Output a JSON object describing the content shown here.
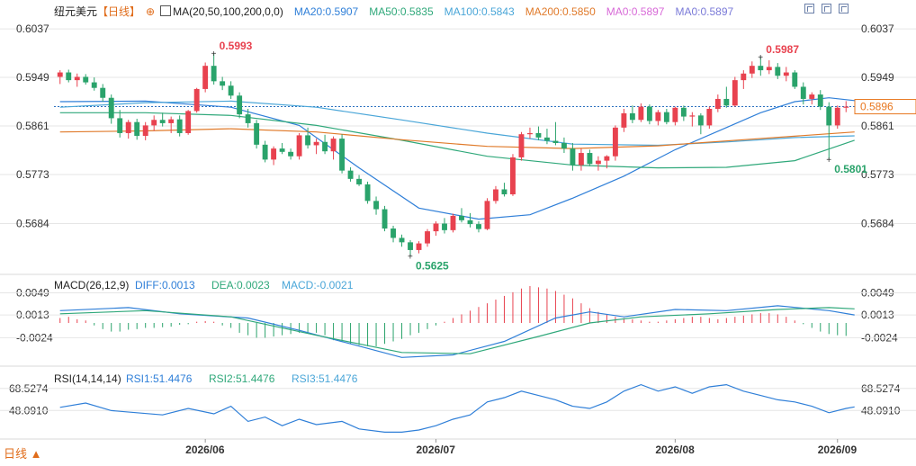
{
  "header": {
    "symbol": "纽元美元",
    "period": "【日线】",
    "ma_label": "MA(20,50,100,200,0,0)",
    "ma_values": [
      {
        "text": "MA20:0.5907",
        "color": "#2f7fd8"
      },
      {
        "text": "MA50:0.5835",
        "color": "#2fa87a"
      },
      {
        "text": "MA100:0.5843",
        "color": "#4aa6d8"
      },
      {
        "text": "MA200:0.5850",
        "color": "#e07a2a"
      },
      {
        "text": "MA0:0.5897",
        "color": "#d86ad8"
      },
      {
        "text": "MA0:0.5897",
        "color": "#7a7ad8"
      }
    ]
  },
  "colors": {
    "up": "#e8424f",
    "down": "#2aa36b",
    "grid": "#e6e6e6",
    "axis_text": "#333333",
    "price_tag": "#e8771f"
  },
  "price_axis": {
    "ticks": [
      "0.6037",
      "0.5949",
      "0.5861",
      "0.5773",
      "0.5684"
    ],
    "current": "0.5896"
  },
  "annotations": {
    "high1": "0.5993",
    "high2": "0.5987",
    "low1": "0.5625",
    "low2": "0.5801"
  },
  "macd_panel": {
    "label": "MACD(26,12,9)",
    "values": [
      {
        "text": "DIFF:0.0013",
        "color": "#2f7fd8"
      },
      {
        "text": "DEA:0.0023",
        "color": "#2fa87a"
      },
      {
        "text": "MACD:-0.0021",
        "color": "#4aa6d8"
      }
    ],
    "ticks": [
      "0.0049",
      "0.0013",
      "-0.0024"
    ]
  },
  "rsi_panel": {
    "label": "RSI(14,14,14)",
    "values": [
      {
        "text": "RSI1:51.4476",
        "color": "#2f7fd8"
      },
      {
        "text": "RSI2:51.4476",
        "color": "#2fa87a"
      },
      {
        "text": "RSI3:51.4476",
        "color": "#4aa6d8"
      }
    ],
    "ticks": [
      "68.5274",
      "48.0910"
    ]
  },
  "x_axis": {
    "labels": [
      "2026/06",
      "2026/07",
      "2026/08",
      "2026/09"
    ]
  },
  "bottom_tab": "日线 ▲",
  "chart_data": {
    "type": "candlestick",
    "candles": [
      [
        0.595,
        0.5962,
        0.5937,
        0.5958
      ],
      [
        0.5958,
        0.5963,
        0.594,
        0.5944
      ],
      [
        0.5944,
        0.5956,
        0.5932,
        0.595
      ],
      [
        0.595,
        0.5955,
        0.5936,
        0.594
      ],
      [
        0.594,
        0.5949,
        0.5925,
        0.593
      ],
      [
        0.593,
        0.5937,
        0.5905,
        0.5912
      ],
      [
        0.5912,
        0.5918,
        0.5865,
        0.5875
      ],
      [
        0.5875,
        0.589,
        0.584,
        0.5848
      ],
      [
        0.5848,
        0.5872,
        0.5838,
        0.5868
      ],
      [
        0.5868,
        0.5874,
        0.5836,
        0.5843
      ],
      [
        0.5843,
        0.5868,
        0.5835,
        0.5862
      ],
      [
        0.5862,
        0.588,
        0.5852,
        0.5872
      ],
      [
        0.5872,
        0.5885,
        0.586,
        0.5866
      ],
      [
        0.5866,
        0.5878,
        0.5848,
        0.5873
      ],
      [
        0.5873,
        0.588,
        0.5842,
        0.5848
      ],
      [
        0.5848,
        0.589,
        0.5845,
        0.5888
      ],
      [
        0.5888,
        0.593,
        0.5885,
        0.5928
      ],
      [
        0.5928,
        0.5976,
        0.5922,
        0.597
      ],
      [
        0.597,
        0.5993,
        0.5936,
        0.5942
      ],
      [
        0.5942,
        0.595,
        0.5926,
        0.5934
      ],
      [
        0.5934,
        0.5942,
        0.591,
        0.5916
      ],
      [
        0.5916,
        0.5922,
        0.5875,
        0.5882
      ],
      [
        0.5882,
        0.5892,
        0.5858,
        0.5866
      ],
      [
        0.5866,
        0.5872,
        0.582,
        0.5827
      ],
      [
        0.5827,
        0.5834,
        0.5795,
        0.58
      ],
      [
        0.58,
        0.5824,
        0.579,
        0.582
      ],
      [
        0.582,
        0.583,
        0.581,
        0.5814
      ],
      [
        0.5814,
        0.582,
        0.58,
        0.5806
      ],
      [
        0.5806,
        0.5848,
        0.58,
        0.5844
      ],
      [
        0.5844,
        0.5858,
        0.582,
        0.5826
      ],
      [
        0.5826,
        0.5838,
        0.581,
        0.5832
      ],
      [
        0.5832,
        0.5845,
        0.581,
        0.5815
      ],
      [
        0.5815,
        0.5842,
        0.58,
        0.5838
      ],
      [
        0.5838,
        0.5846,
        0.5775,
        0.578
      ],
      [
        0.578,
        0.5786,
        0.576,
        0.5765
      ],
      [
        0.5765,
        0.5772,
        0.5752,
        0.5755
      ],
      [
        0.5755,
        0.576,
        0.572,
        0.5725
      ],
      [
        0.5725,
        0.5733,
        0.57,
        0.571
      ],
      [
        0.571,
        0.5716,
        0.567,
        0.5675
      ],
      [
        0.5675,
        0.568,
        0.565,
        0.5658
      ],
      [
        0.5658,
        0.5664,
        0.5642,
        0.565
      ],
      [
        0.565,
        0.5654,
        0.5625,
        0.5636
      ],
      [
        0.5636,
        0.5652,
        0.563,
        0.5648
      ],
      [
        0.5648,
        0.5674,
        0.5642,
        0.567
      ],
      [
        0.567,
        0.5688,
        0.5662,
        0.5684
      ],
      [
        0.5684,
        0.5694,
        0.5666,
        0.5672
      ],
      [
        0.5672,
        0.5702,
        0.5668,
        0.5698
      ],
      [
        0.5698,
        0.5712,
        0.5686,
        0.569
      ],
      [
        0.569,
        0.5703,
        0.5677,
        0.5683
      ],
      [
        0.5683,
        0.5688,
        0.5668,
        0.5674
      ],
      [
        0.5674,
        0.573,
        0.5672,
        0.5725
      ],
      [
        0.5725,
        0.5752,
        0.572,
        0.5746
      ],
      [
        0.5746,
        0.5758,
        0.5733,
        0.5737
      ],
      [
        0.5737,
        0.581,
        0.5734,
        0.5804
      ],
      [
        0.5804,
        0.585,
        0.5798,
        0.5846
      ],
      [
        0.5846,
        0.5858,
        0.5838,
        0.5848
      ],
      [
        0.5848,
        0.586,
        0.5835,
        0.584
      ],
      [
        0.584,
        0.5856,
        0.5828,
        0.5834
      ],
      [
        0.5834,
        0.5868,
        0.5826,
        0.583
      ],
      [
        0.583,
        0.584,
        0.5812,
        0.582
      ],
      [
        0.582,
        0.583,
        0.578,
        0.579
      ],
      [
        0.579,
        0.582,
        0.578,
        0.5812
      ],
      [
        0.5812,
        0.5818,
        0.5788,
        0.5792
      ],
      [
        0.5792,
        0.5806,
        0.578,
        0.5798
      ],
      [
        0.5798,
        0.5808,
        0.5784,
        0.5806
      ],
      [
        0.5806,
        0.5862,
        0.5798,
        0.5858
      ],
      [
        0.5858,
        0.5892,
        0.585,
        0.5884
      ],
      [
        0.5884,
        0.5898,
        0.5866,
        0.5872
      ],
      [
        0.5872,
        0.5902,
        0.5868,
        0.5896
      ],
      [
        0.5896,
        0.59,
        0.5864,
        0.587
      ],
      [
        0.587,
        0.589,
        0.5862,
        0.5886
      ],
      [
        0.5886,
        0.5892,
        0.5864,
        0.5868
      ],
      [
        0.5868,
        0.5896,
        0.5862,
        0.5894
      ],
      [
        0.5894,
        0.5898,
        0.587,
        0.5878
      ],
      [
        0.5878,
        0.5886,
        0.586,
        0.588
      ],
      [
        0.588,
        0.5884,
        0.5846,
        0.5862
      ],
      [
        0.5862,
        0.5896,
        0.5856,
        0.5892
      ],
      [
        0.5892,
        0.5918,
        0.5886,
        0.591
      ],
      [
        0.591,
        0.5932,
        0.5894,
        0.5898
      ],
      [
        0.5898,
        0.595,
        0.5896,
        0.5944
      ],
      [
        0.5944,
        0.5962,
        0.5928,
        0.5956
      ],
      [
        0.5956,
        0.5978,
        0.5948,
        0.597
      ],
      [
        0.597,
        0.5987,
        0.5952,
        0.5962
      ],
      [
        0.5962,
        0.598,
        0.5955,
        0.5968
      ],
      [
        0.5968,
        0.5975,
        0.5946,
        0.5952
      ],
      [
        0.5952,
        0.5968,
        0.5942,
        0.5958
      ],
      [
        0.5958,
        0.5962,
        0.5928,
        0.5932
      ],
      [
        0.5932,
        0.594,
        0.59,
        0.591
      ],
      [
        0.591,
        0.5922,
        0.59,
        0.5918
      ],
      [
        0.5918,
        0.5926,
        0.589,
        0.5896
      ],
      [
        0.5896,
        0.5904,
        0.5801,
        0.5862
      ],
      [
        0.5862,
        0.5898,
        0.5856,
        0.5894
      ],
      [
        0.5894,
        0.5906,
        0.5886,
        0.5896
      ]
    ],
    "ma_series": [
      {
        "name": "MA20",
        "color": "#2f7fd8",
        "points": [
          [
            0,
            0.5905
          ],
          [
            10,
            0.5906
          ],
          [
            20,
            0.5895
          ],
          [
            28,
            0.5862
          ],
          [
            35,
            0.5785
          ],
          [
            42,
            0.5712
          ],
          [
            49,
            0.5692
          ],
          [
            55,
            0.57
          ],
          [
            60,
            0.573
          ],
          [
            66,
            0.577
          ],
          [
            72,
            0.5818
          ],
          [
            78,
            0.5858
          ],
          [
            82,
            0.5885
          ],
          [
            86,
            0.5905
          ],
          [
            90,
            0.5912
          ],
          [
            93,
            0.5907
          ]
        ]
      },
      {
        "name": "MA50",
        "color": "#2fa87a",
        "points": [
          [
            0,
            0.5885
          ],
          [
            10,
            0.5885
          ],
          [
            20,
            0.588
          ],
          [
            30,
            0.5862
          ],
          [
            40,
            0.5835
          ],
          [
            50,
            0.5806
          ],
          [
            60,
            0.579
          ],
          [
            70,
            0.5785
          ],
          [
            78,
            0.5786
          ],
          [
            86,
            0.5798
          ],
          [
            93,
            0.5835
          ]
        ]
      },
      {
        "name": "MA100",
        "color": "#4aa6d8",
        "points": [
          [
            0,
            0.5895
          ],
          [
            10,
            0.5903
          ],
          [
            20,
            0.5906
          ],
          [
            30,
            0.5895
          ],
          [
            40,
            0.5872
          ],
          [
            50,
            0.5848
          ],
          [
            60,
            0.5828
          ],
          [
            70,
            0.5826
          ],
          [
            78,
            0.5832
          ],
          [
            86,
            0.584
          ],
          [
            93,
            0.5843
          ]
        ]
      },
      {
        "name": "MA200",
        "color": "#e07a2a",
        "points": [
          [
            0,
            0.585
          ],
          [
            10,
            0.5852
          ],
          [
            20,
            0.5856
          ],
          [
            30,
            0.585
          ],
          [
            40,
            0.5836
          ],
          [
            50,
            0.5824
          ],
          [
            60,
            0.582
          ],
          [
            70,
            0.5825
          ],
          [
            80,
            0.5836
          ],
          [
            93,
            0.585
          ]
        ]
      }
    ],
    "macd": {
      "hist": [
        0.0008,
        0.001,
        0.0006,
        0.0004,
        -0.0004,
        -0.001,
        -0.0014,
        -0.0014,
        -0.0011,
        -0.001,
        -0.0008,
        -0.0008,
        -0.0007,
        -0.0006,
        -0.0003,
        -0.0002,
        0.0002,
        0.0003,
        0.0002,
        -0.0004,
        -0.0008,
        -0.0016,
        -0.002,
        -0.0024,
        -0.0024,
        -0.0022,
        -0.002,
        -0.0018,
        -0.0016,
        -0.0016,
        -0.0016,
        -0.002,
        -0.0028,
        -0.003,
        -0.0034,
        -0.0036,
        -0.0038,
        -0.0038,
        -0.0034,
        -0.003,
        -0.0026,
        -0.002,
        -0.0016,
        -0.001,
        -0.0004,
        0.0002,
        0.0008,
        0.0014,
        0.002,
        0.0026,
        0.0032,
        0.0038,
        0.0044,
        0.005,
        0.0056,
        0.006,
        0.0058,
        0.0056,
        0.0052,
        0.0046,
        0.004,
        0.0032,
        0.0024,
        0.0018,
        0.0014,
        0.001,
        0.0008,
        0.0006,
        0.0004,
        0.0002,
        0.0002,
        0.0004,
        0.0006,
        0.0008,
        0.001,
        0.001,
        0.0008,
        0.0006,
        0.0008,
        0.001,
        0.0012,
        0.0014,
        0.0016,
        0.0016,
        0.0014,
        0.001,
        0.0004,
        -0.0002,
        -0.0008,
        -0.0014,
        -0.0018,
        -0.002,
        -0.0021
      ],
      "diff": [
        [
          0,
          0.002
        ],
        [
          8,
          0.0025
        ],
        [
          14,
          0.0015
        ],
        [
          22,
          0.0008
        ],
        [
          28,
          -0.0012
        ],
        [
          34,
          -0.0034
        ],
        [
          40,
          -0.0056
        ],
        [
          46,
          -0.0052
        ],
        [
          52,
          -0.003
        ],
        [
          58,
          0.0008
        ],
        [
          62,
          0.0018
        ],
        [
          66,
          0.001
        ],
        [
          72,
          0.0022
        ],
        [
          78,
          0.002
        ],
        [
          84,
          0.0028
        ],
        [
          90,
          0.002
        ],
        [
          93,
          0.0013
        ]
      ],
      "dea": [
        [
          0,
          0.0015
        ],
        [
          10,
          0.002
        ],
        [
          20,
          0.001
        ],
        [
          30,
          -0.002
        ],
        [
          40,
          -0.0048
        ],
        [
          48,
          -0.005
        ],
        [
          56,
          -0.0022
        ],
        [
          62,
          0.0
        ],
        [
          68,
          0.001
        ],
        [
          76,
          0.0015
        ],
        [
          84,
          0.0022
        ],
        [
          90,
          0.0025
        ],
        [
          93,
          0.0023
        ]
      ]
    },
    "rsi": {
      "points": [
        [
          0,
          51
        ],
        [
          3,
          55
        ],
        [
          6,
          48
        ],
        [
          9,
          46
        ],
        [
          12,
          44
        ],
        [
          15,
          50
        ],
        [
          18,
          45
        ],
        [
          20,
          52
        ],
        [
          22,
          38
        ],
        [
          24,
          42
        ],
        [
          26,
          34
        ],
        [
          28,
          40
        ],
        [
          30,
          35
        ],
        [
          33,
          38
        ],
        [
          35,
          31
        ],
        [
          38,
          28
        ],
        [
          40,
          28
        ],
        [
          42,
          30
        ],
        [
          44,
          34
        ],
        [
          46,
          40
        ],
        [
          48,
          44
        ],
        [
          50,
          56
        ],
        [
          52,
          60
        ],
        [
          54,
          66
        ],
        [
          56,
          62
        ],
        [
          58,
          58
        ],
        [
          60,
          52
        ],
        [
          62,
          50
        ],
        [
          64,
          56
        ],
        [
          66,
          66
        ],
        [
          68,
          72
        ],
        [
          70,
          66
        ],
        [
          72,
          70
        ],
        [
          74,
          64
        ],
        [
          76,
          70
        ],
        [
          78,
          72
        ],
        [
          80,
          66
        ],
        [
          82,
          62
        ],
        [
          84,
          58
        ],
        [
          86,
          56
        ],
        [
          88,
          52
        ],
        [
          90,
          46
        ],
        [
          92,
          50
        ],
        [
          93,
          51.4476
        ]
      ],
      "range": [
        20,
        80
      ]
    },
    "ylim_price": [
      0.56,
      0.606
    ]
  }
}
